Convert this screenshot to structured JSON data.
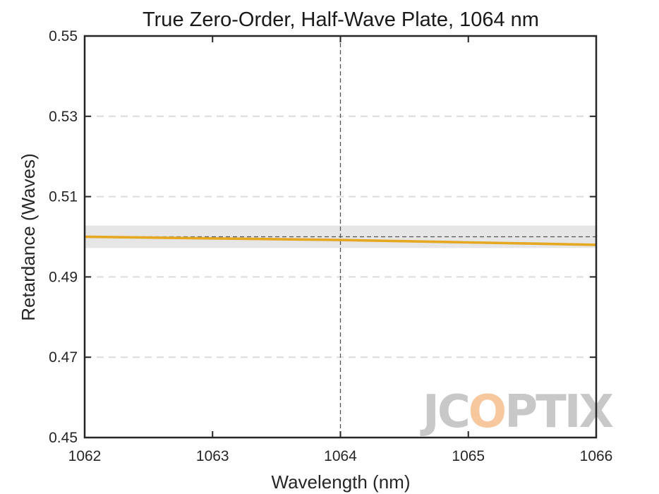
{
  "chart_data": {
    "type": "line",
    "title": "True Zero-Order, Half-Wave Plate, 1064 nm",
    "xlabel": "Wavelength (nm)",
    "ylabel": "Retardance (Waves)",
    "xlim": [
      1062,
      1066
    ],
    "ylim": [
      0.45,
      0.55
    ],
    "xticks": [
      "1062",
      "1063",
      "1064",
      "1065",
      "1066"
    ],
    "yticks": [
      "0.45",
      "0.47",
      "0.49",
      "0.51",
      "0.53",
      "0.55"
    ],
    "grid": "horizontal dashed",
    "series": [
      {
        "color": "#E5A823",
        "x": [
          1062,
          1063,
          1064,
          1065,
          1066
        ],
        "y": [
          0.5,
          0.4996,
          0.4992,
          0.4986,
          0.498
        ]
      }
    ],
    "reference_line": {
      "y": 0.5,
      "color": "#555555",
      "style": "dashed"
    },
    "tolerance_band": {
      "y": [
        0.4972,
        0.5028
      ],
      "color": "#E6E6E6"
    },
    "design_wavelength_line": {
      "x": 1064,
      "color": "#555555",
      "style": "dashed"
    }
  },
  "watermark": {
    "text": "JCOPTIX",
    "color": "#C8C8C8",
    "accent_color": "#F7C89E"
  }
}
